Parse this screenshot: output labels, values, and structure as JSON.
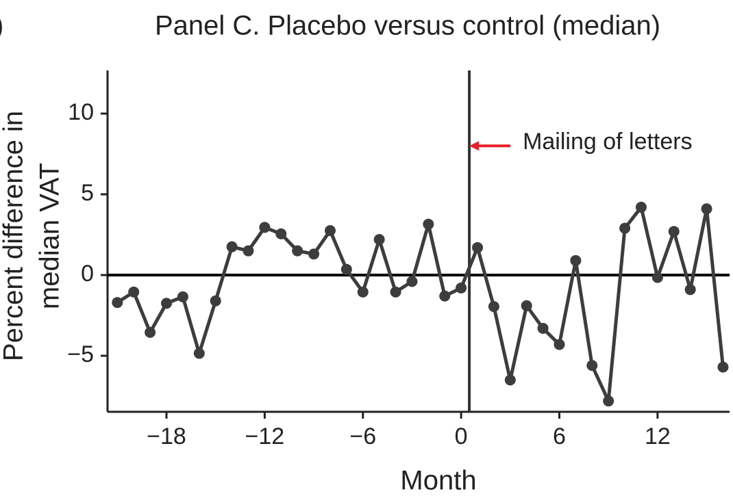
{
  "fragment": ")",
  "chart_data": {
    "type": "line",
    "title": "Panel C. Placebo versus control (median)",
    "xlabel": "Month",
    "ylabel": [
      "Percent difference in",
      "median VAT"
    ],
    "x": [
      -21,
      -20,
      -19,
      -18,
      -17,
      -16,
      -15,
      -14,
      -13,
      -12,
      -11,
      -10,
      -9,
      -8,
      -7,
      -6,
      -5,
      -4,
      -3,
      -2,
      -1,
      0,
      1,
      2,
      3,
      4,
      5,
      6,
      7,
      8,
      9,
      10,
      11,
      12,
      13,
      14,
      15,
      16
    ],
    "series": [
      {
        "name": "Placebo versus control",
        "color": "#3d3d3d",
        "values": [
          -1.7,
          -1.05,
          -3.55,
          -1.75,
          -1.35,
          -4.85,
          -1.6,
          1.75,
          1.5,
          2.95,
          2.55,
          1.5,
          1.3,
          2.75,
          0.35,
          -1.05,
          2.2,
          -1.05,
          -0.4,
          3.15,
          -1.3,
          -0.8,
          1.7,
          -1.95,
          -6.5,
          -1.9,
          -3.3,
          -4.3,
          0.9,
          -5.6,
          -7.8,
          2.9,
          4.2,
          -0.15,
          2.7,
          -0.9,
          4.1,
          -5.7
        ]
      }
    ],
    "xlim": [
      -21.6,
      16.4
    ],
    "ylim": [
      -8.47,
      12.67
    ],
    "xticks": [
      {
        "value": -18,
        "label": "−18"
      },
      {
        "value": -12,
        "label": "−12"
      },
      {
        "value": -6,
        "label": "−6"
      },
      0,
      6,
      12
    ],
    "yticks": [
      {
        "value": -5,
        "label": "−5"
      },
      0,
      5,
      10
    ],
    "vline": 0.5,
    "hline": 0,
    "annotation": {
      "text": "Mailing of letters",
      "y": 8,
      "color": "#e8202a"
    },
    "grid": false
  }
}
